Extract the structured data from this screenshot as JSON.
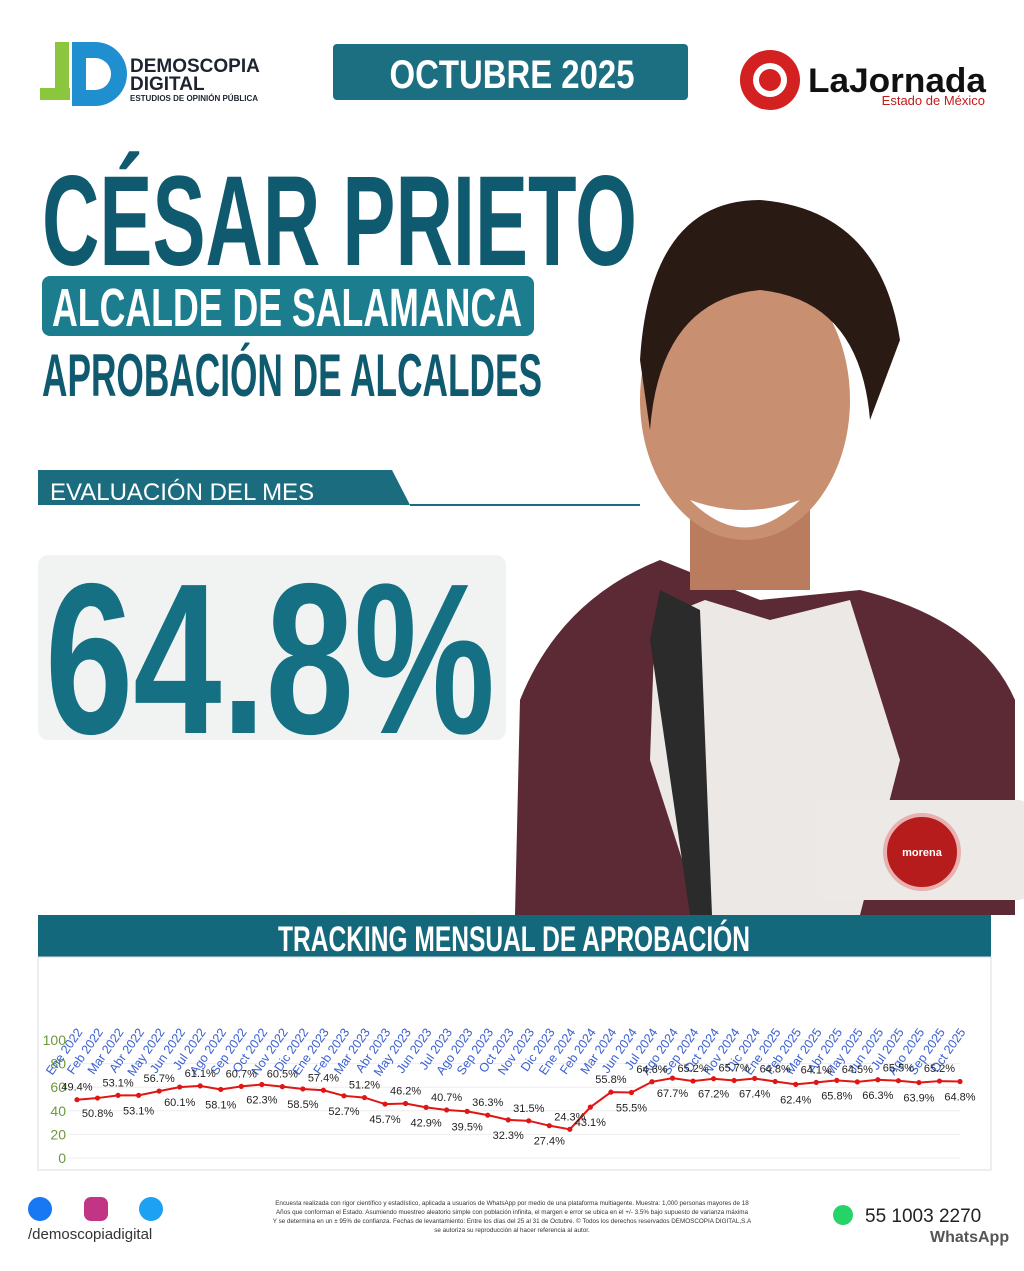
{
  "header": {
    "brand": "DEMOSCOPIA",
    "brand2": "DIGITAL",
    "brand_tagline": "ESTUDIOS DE OPINIÓN PÚBLICA",
    "date": "OCTUBRE 2025",
    "outlet": "LaJornada",
    "outlet_region": "Estado de México"
  },
  "hero": {
    "name": "CÉSAR PRIETO",
    "position": "ALCALDE DE SALAMANCA",
    "survey": "APROBACIÓN DE ALCALDES",
    "evaluation_label": "EVALUACIÓN DEL MES",
    "evaluation": "64.8%",
    "party": "morena"
  },
  "chart_data": {
    "type": "line",
    "title": "TRACKING MENSUAL DE APROBACIÓN",
    "categories": [
      "Ene 2022",
      "Feb 2022",
      "Mar 2022",
      "Abr 2022",
      "May 2022",
      "Jun 2022",
      "Jul 2022",
      "Ago 2022",
      "Sep 2022",
      "Oct 2022",
      "Nov 2022",
      "Dic 2022",
      "Ene 2023",
      "Feb 2023",
      "Mar 2023",
      "Abr 2023",
      "May 2023",
      "Jun 2023",
      "Jul 2023",
      "Ago 2023",
      "Sep 2023",
      "Oct 2023",
      "Nov 2023",
      "Dic 2023",
      "Ene 2024",
      "Feb 2024",
      "Mar 2024",
      "Jun 2024",
      "Jul 2024",
      "Ago 2024",
      "Sep 2024",
      "Oct 2024",
      "Nov 2024",
      "Dic 2024",
      "Ene 2025",
      "Feb 2025",
      "Mar 2025",
      "Abr 2025",
      "May 2025",
      "Jun 2025",
      "Jul 2025",
      "Ago 2025",
      "Sep 2025",
      "Oct 2025"
    ],
    "values": [
      49.4,
      50.8,
      53.1,
      53.1,
      56.7,
      60.1,
      61.1,
      58.1,
      60.7,
      62.3,
      60.5,
      58.5,
      57.4,
      52.7,
      51.2,
      45.7,
      46.2,
      42.9,
      40.7,
      39.5,
      36.3,
      32.3,
      31.5,
      27.4,
      24.3,
      43.1,
      55.8,
      55.5,
      64.6,
      67.7,
      65.2,
      67.2,
      65.7,
      67.4,
      64.8,
      62.4,
      64.1,
      65.8,
      64.5,
      66.3,
      65.5,
      63.9,
      65.2,
      64.8
    ],
    "value_labels": [
      "49.4%",
      "50.8%",
      "53.1%",
      "53.1%",
      "56.7%",
      "60.1%",
      "61.1%",
      "58.1%",
      "60.7%",
      "62.3%",
      "60.5%",
      "58.5%",
      "57.4%",
      "52.7%",
      "51.2%",
      "45.7%",
      "46.2%",
      "42.9%",
      "40.7%",
      "39.5%",
      "36.3%",
      "32.3%",
      "31.5%",
      "27.4%",
      "24.3%",
      "43.1%",
      "55.8%",
      "55.5%",
      "64.6%",
      "67.7%",
      "65.2%",
      "67.2%",
      "65.7%",
      "67.4%",
      "64.8%",
      "62.4%",
      "64.1%",
      "65.8%",
      "64.5%",
      "66.3%",
      "65.5%",
      "63.9%",
      "65.2%",
      "64.8%"
    ],
    "color": "#e01515",
    "ylim": [
      0,
      100
    ],
    "yticks": [
      0,
      20,
      40,
      60,
      80,
      100
    ],
    "grid": true
  },
  "footer": {
    "social": "/demoscopiadigital",
    "phone": "55 1003 2270",
    "whatsapp": "WhatsApp",
    "disclaimer": [
      "Encuesta realizada con rigor científico y estadístico, aplicada a usuarios de WhatsApp por medio de una plataforma multiagente. Muestra: 1,000 personas mayores de 18",
      "Años que conforman el Estado. Asumiendo muestreo aleatorio simple con población infinita, el margen e error se ubica en el +/- 3.5% bajo supuesto de varianza máxima",
      "Y se determina en un ± 95% de confianza. Fechas de levantamiento: Entre los días del 25 al 31 de Octubre. © Todos los derechos reservados DEMOSCOPIA DIGITAL,S.A",
      "se autoriza su reproducción al hacer referencia al autor."
    ]
  }
}
